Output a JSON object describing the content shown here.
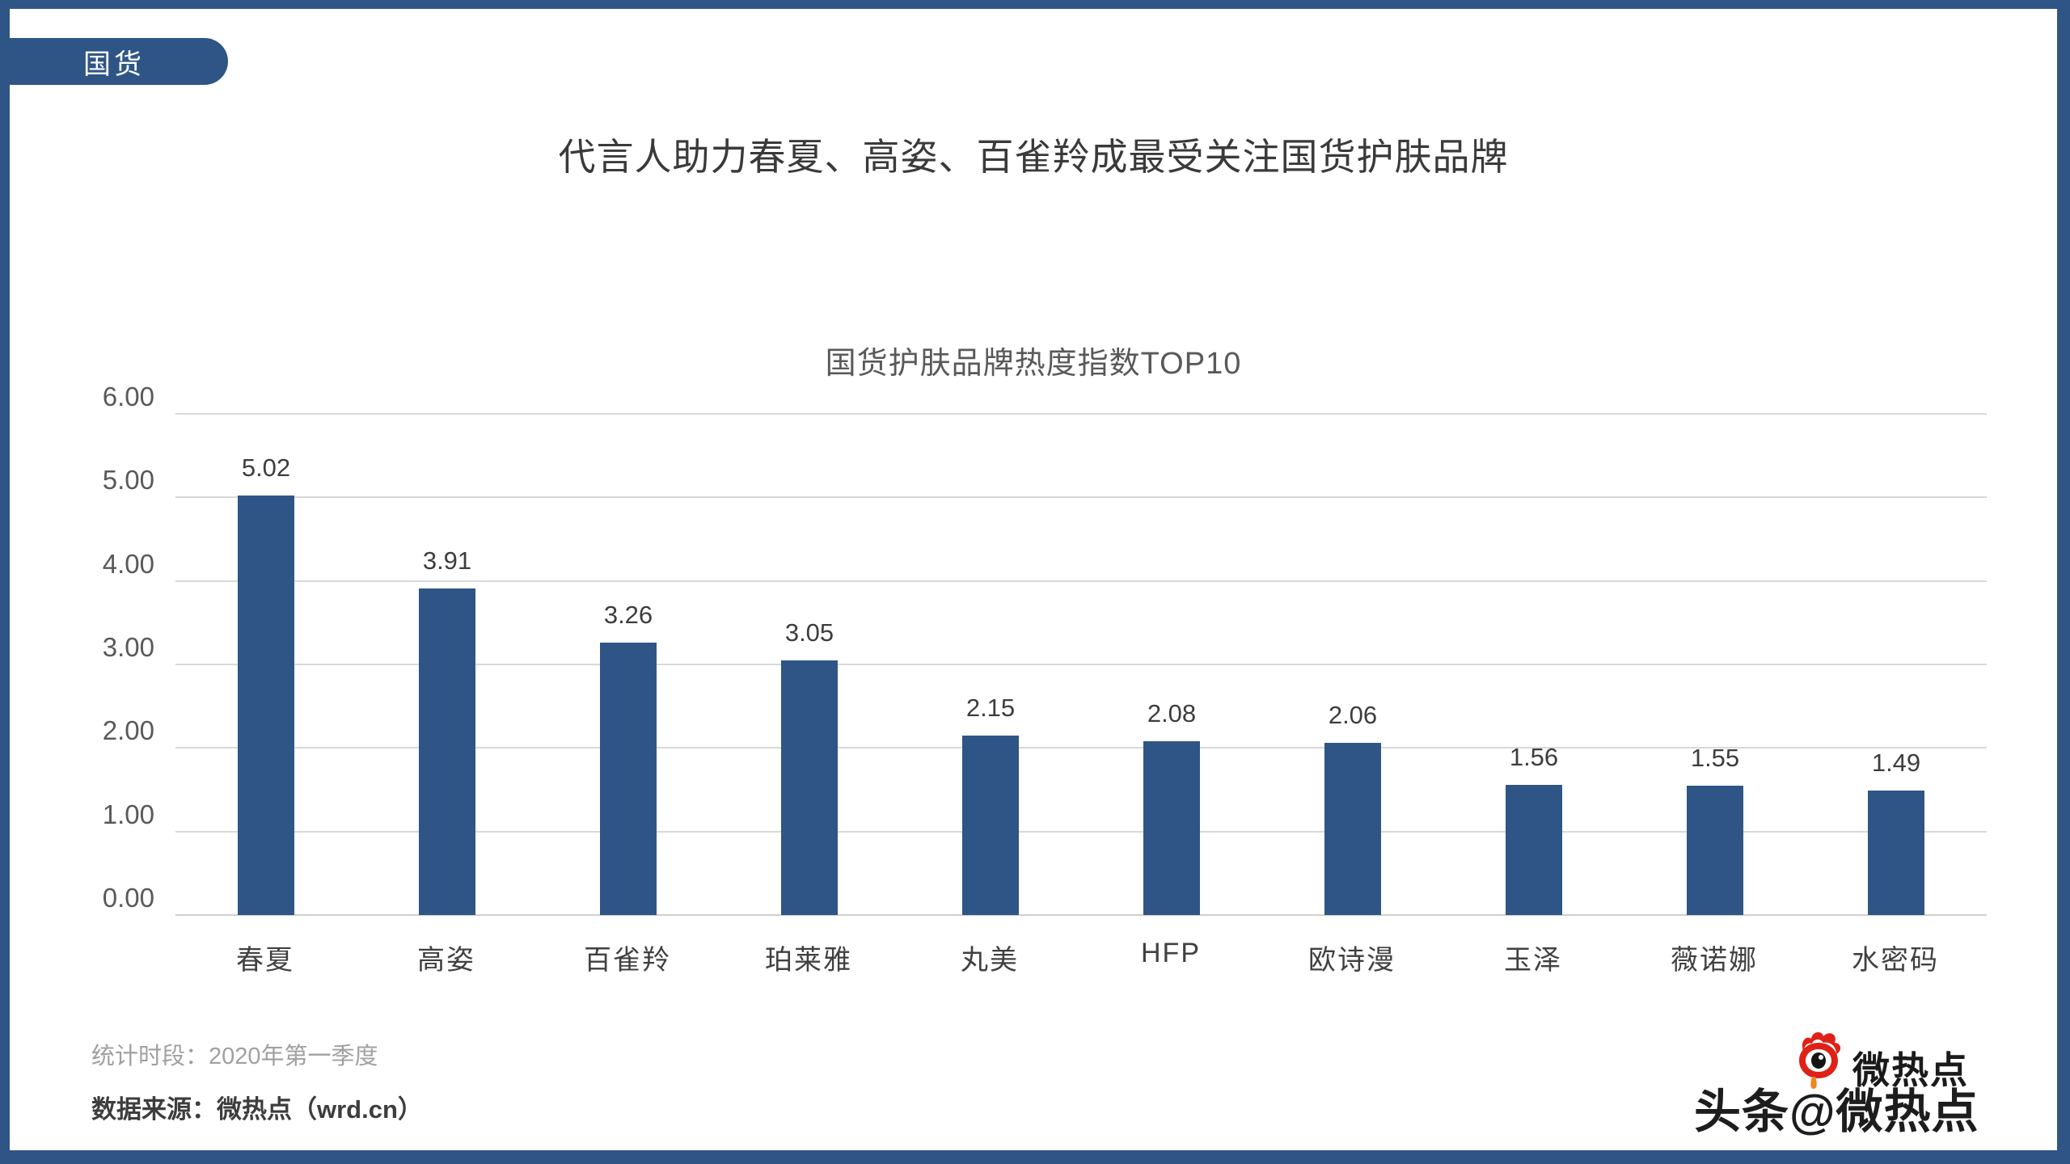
{
  "page": {
    "badge": "国货",
    "title": "代言人助力春夏、高姿、百雀羚成最受关注国货护肤品牌",
    "frame_color": "#2e5586"
  },
  "chart_data": {
    "type": "bar",
    "title": "国货护肤品牌热度指数TOP10",
    "categories": [
      "春夏",
      "高姿",
      "百雀羚",
      "珀莱雅",
      "丸美",
      "HFP",
      "欧诗漫",
      "玉泽",
      "薇诺娜",
      "水密码"
    ],
    "values": [
      5.02,
      3.91,
      3.26,
      3.05,
      2.15,
      2.08,
      2.06,
      1.56,
      1.55,
      1.49
    ],
    "value_labels": [
      "5.02",
      "3.91",
      "3.26",
      "3.05",
      "2.15",
      "2.08",
      "2.06",
      "1.56",
      "1.55",
      "1.49"
    ],
    "ylabel": "",
    "xlabel": "",
    "ylim": [
      0,
      6
    ],
    "ytick_labels": [
      "0.00",
      "1.00",
      "2.00",
      "3.00",
      "4.00",
      "5.00",
      "6.00"
    ],
    "grid": true,
    "legend": "none",
    "bar_color": "#2e5586",
    "gridline_color": "#d9d9d9"
  },
  "footer": {
    "period": "统计时段：2020年第一季度",
    "source": "数据来源：微热点（wrd.cn）"
  },
  "watermark": {
    "logo_text": "微热点",
    "overlay_text": "头条@微热点",
    "logo_red": "#df2117",
    "drop_orange": "#ee8722"
  }
}
